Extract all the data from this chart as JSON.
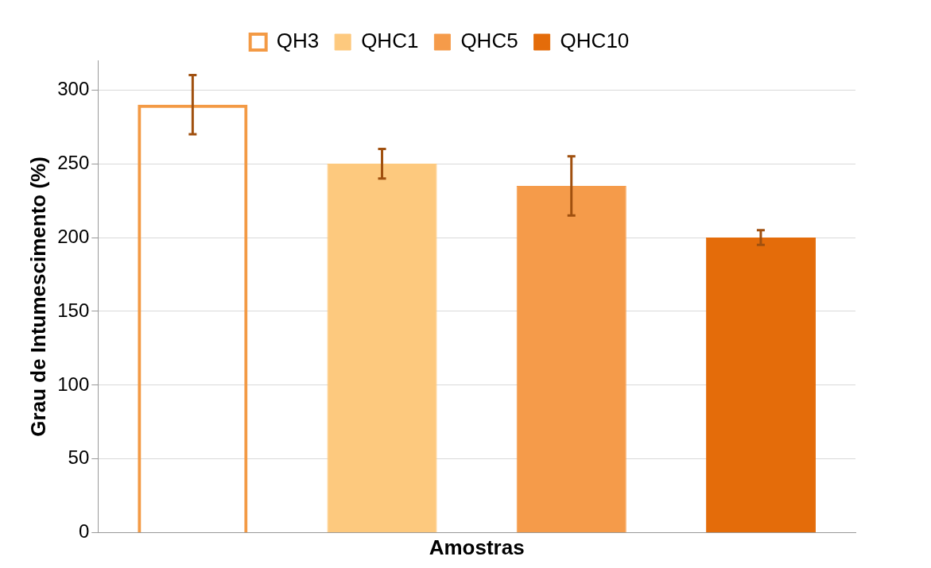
{
  "chart_data": {
    "type": "bar",
    "xlabel": "Amostras",
    "ylabel": "Grau de Intumescimento (%)",
    "categories": [
      null,
      null,
      null,
      null
    ],
    "series": [
      {
        "name": "QH3",
        "color": "#f39a45",
        "values": [
          290,
          null,
          null,
          null
        ],
        "errors": [
          20,
          null,
          null,
          null
        ]
      },
      {
        "name": "QHC1",
        "color": "#fdc97e",
        "values": [
          null,
          250,
          null,
          null
        ],
        "errors": [
          null,
          10,
          null,
          null
        ]
      },
      {
        "name": "QHC5",
        "color": "#f59b4a",
        "values": [
          null,
          null,
          235,
          null
        ],
        "errors": [
          null,
          null,
          20,
          null
        ]
      },
      {
        "name": "QHC10",
        "color": "#e46c0a",
        "values": [
          null,
          null,
          null,
          200
        ],
        "errors": [
          null,
          null,
          null,
          5
        ]
      }
    ],
    "ylim": [
      0,
      320
    ],
    "yticks": [
      0,
      50,
      100,
      150,
      200,
      250,
      300
    ],
    "grid": "y",
    "legend": "top",
    "tick_labels": "y"
  }
}
